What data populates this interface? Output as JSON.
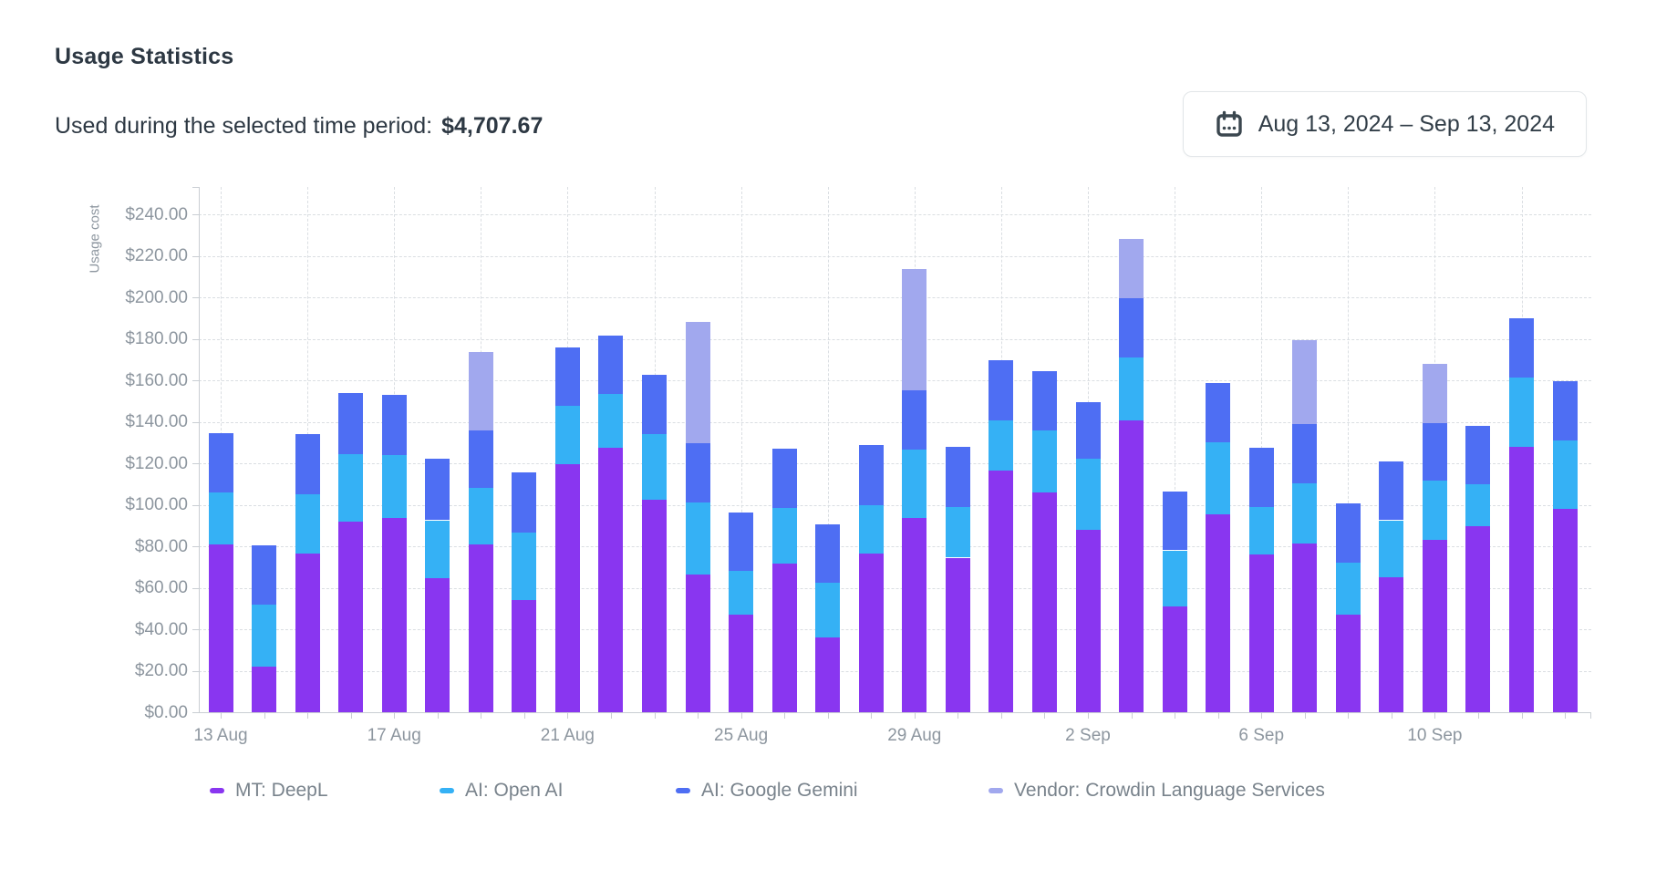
{
  "header": {
    "title": "Usage Statistics",
    "subtitle_label": "Used during the selected time period:",
    "subtitle_value": "$4,707.67"
  },
  "date_picker": {
    "icon": "calendar-icon",
    "range": "Aug 13, 2024 – Sep 13, 2024"
  },
  "chart_data": {
    "type": "bar",
    "stacked": true,
    "ylabel": "Usage cost",
    "ylim": [
      0,
      253
    ],
    "grid": "dashed",
    "legend_position": "bottom",
    "y_ticks": [
      {
        "v": 0,
        "label": "$0.00"
      },
      {
        "v": 20,
        "label": "$20.00"
      },
      {
        "v": 40,
        "label": "$40.00"
      },
      {
        "v": 60,
        "label": "$60.00"
      },
      {
        "v": 80,
        "label": "$80.00"
      },
      {
        "v": 100,
        "label": "$100.00"
      },
      {
        "v": 120,
        "label": "$120.00"
      },
      {
        "v": 140,
        "label": "$140.00"
      },
      {
        "v": 160,
        "label": "$160.00"
      },
      {
        "v": 180,
        "label": "$180.00"
      },
      {
        "v": 200,
        "label": "$200.00"
      },
      {
        "v": 220,
        "label": "$220.00"
      },
      {
        "v": 240,
        "label": "$240.00"
      }
    ],
    "categories": [
      "13 Aug",
      "14 Aug",
      "15 Aug",
      "16 Aug",
      "17 Aug",
      "18 Aug",
      "19 Aug",
      "20 Aug",
      "21 Aug",
      "22 Aug",
      "23 Aug",
      "24 Aug",
      "25 Aug",
      "26 Aug",
      "27 Aug",
      "28 Aug",
      "29 Aug",
      "30 Aug",
      "31 Aug",
      "1 Sep",
      "2 Sep",
      "3 Sep",
      "4 Sep",
      "5 Sep",
      "6 Sep",
      "7 Sep",
      "8 Sep",
      "9 Sep",
      "10 Sep",
      "11 Sep",
      "12 Sep",
      "13 Sep"
    ],
    "x_labeled_ticks": [
      {
        "index": 0,
        "label": "13 Aug"
      },
      {
        "index": 4,
        "label": "17 Aug"
      },
      {
        "index": 8,
        "label": "21 Aug"
      },
      {
        "index": 12,
        "label": "25 Aug"
      },
      {
        "index": 16,
        "label": "29 Aug"
      },
      {
        "index": 20,
        "label": "2 Sep"
      },
      {
        "index": 24,
        "label": "6 Sep"
      },
      {
        "index": 28,
        "label": "10 Sep"
      }
    ],
    "series": [
      {
        "name": "MT: DeepL",
        "color": "#8936f0",
        "values": [
          81,
          22,
          76.5,
          92,
          93.5,
          64.5,
          81,
          54,
          119.5,
          127.5,
          102.5,
          66.5,
          47,
          71.5,
          36,
          76.5,
          93.5,
          74.5,
          116.5,
          106,
          88,
          140.5,
          51,
          95.5,
          76,
          81.5,
          47,
          65,
          83,
          89.5,
          128,
          98
        ]
      },
      {
        "name": "AI: Open AI",
        "color": "#35b1f5",
        "values": [
          25,
          30,
          28.5,
          32.5,
          30.5,
          28,
          27,
          32.5,
          28,
          26,
          31.5,
          34.5,
          21,
          27,
          26.5,
          23.5,
          33,
          24.5,
          24,
          30,
          34,
          30.5,
          27,
          34.5,
          23,
          29,
          25,
          27.5,
          28.5,
          20.5,
          33.5,
          33
        ]
      },
      {
        "name": "AI: Google Gemini",
        "color": "#4e6ef3",
        "values": [
          28.5,
          28.5,
          29,
          29.5,
          29,
          29.5,
          28,
          29,
          28.5,
          28,
          28.5,
          28.5,
          28.5,
          28.5,
          28,
          29,
          28.5,
          29,
          29,
          28.5,
          27.5,
          28.5,
          28.5,
          28.5,
          28.5,
          28.5,
          28.5,
          28.5,
          28,
          28,
          28.5,
          28.5
        ]
      },
      {
        "name": "Vendor: Crowdin Language Services",
        "color": "#a1a8ee",
        "values": [
          0,
          0,
          0,
          0,
          0,
          0,
          37.5,
          0,
          0,
          0,
          0,
          58.5,
          0,
          0,
          0,
          0,
          58.5,
          0,
          0,
          0,
          0,
          28.5,
          0,
          0,
          0,
          40.5,
          0,
          0,
          28.5,
          0,
          0,
          0
        ]
      }
    ]
  }
}
